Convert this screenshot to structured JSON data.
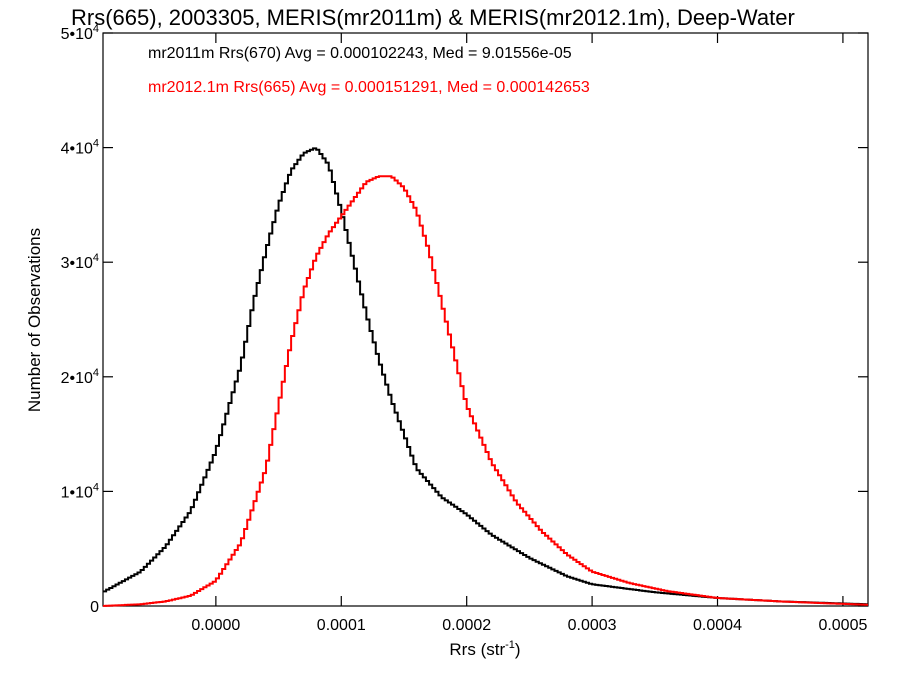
{
  "chart_data": {
    "type": "line",
    "title": "Rrs(665), 2003305, MERIS(mr2011m) & MERIS(mr2012.1m), Deep-Water",
    "xlabel": "Rrs (str",
    "xlabel_superscript": "-1",
    "xlabel_suffix": ")",
    "ylabel": "Number of Observations",
    "xlim": [
      -9e-05,
      0.00052
    ],
    "ylim": [
      0,
      50000
    ],
    "grid": false,
    "x_ticks": [
      {
        "value": 0.0,
        "label": "0.0000"
      },
      {
        "value": 0.0001,
        "label": "0.0001"
      },
      {
        "value": 0.0002,
        "label": "0.0002"
      },
      {
        "value": 0.0003,
        "label": "0.0003"
      },
      {
        "value": 0.0004,
        "label": "0.0004"
      },
      {
        "value": 0.0005,
        "label": "0.0005"
      }
    ],
    "y_ticks": [
      {
        "value": 0,
        "base": "0",
        "exp": ""
      },
      {
        "value": 10000,
        "base": "1•10",
        "exp": "4"
      },
      {
        "value": 20000,
        "base": "2•10",
        "exp": "4"
      },
      {
        "value": 30000,
        "base": "3•10",
        "exp": "4"
      },
      {
        "value": 40000,
        "base": "4•10",
        "exp": "4"
      },
      {
        "value": 50000,
        "base": "5•10",
        "exp": "4"
      }
    ],
    "series": [
      {
        "name": "mr2011m Rrs(670) Avg = 0.000102243, Med = 9.01556e-05",
        "color": "#000000",
        "x": [
          -9e-05,
          -6e-05,
          -4e-05,
          -2e-05,
          0.0,
          2e-05,
          3e-05,
          4e-05,
          5e-05,
          6e-05,
          7e-05,
          8e-05,
          9e-05,
          0.0001,
          0.00011,
          0.00012,
          0.00013,
          0.00014,
          0.00015,
          0.00016,
          0.00018,
          0.0002,
          0.00022,
          0.00025,
          0.00028,
          0.0003,
          0.00035,
          0.0004,
          0.00045,
          0.00052
        ],
        "y": [
          1200,
          3000,
          5200,
          8300,
          13500,
          21000,
          26500,
          31000,
          35000,
          38000,
          39500,
          40000,
          38500,
          34500,
          30000,
          25500,
          21500,
          18000,
          15000,
          12000,
          9500,
          8000,
          6200,
          4200,
          2600,
          1900,
          1200,
          700,
          400,
          150
        ]
      },
      {
        "name": "mr2012.1m Rrs(665) Avg = 0.000151291, Med = 0.000142653",
        "color": "#ff0000",
        "x": [
          -9e-05,
          -6e-05,
          -4e-05,
          -2e-05,
          0.0,
          2e-05,
          4e-05,
          5e-05,
          6e-05,
          7e-05,
          8e-05,
          9e-05,
          0.0001,
          0.00011,
          0.00012,
          0.00013,
          0.00014,
          0.00015,
          0.00016,
          0.00017,
          0.00018,
          0.00019,
          0.0002,
          0.00022,
          0.00024,
          0.00026,
          0.00028,
          0.0003,
          0.00033,
          0.00036,
          0.0004,
          0.00045,
          0.00052
        ],
        "y": [
          0,
          150,
          400,
          900,
          2200,
          5500,
          12000,
          17500,
          23000,
          27500,
          30500,
          32500,
          34000,
          35500,
          37000,
          37500,
          37500,
          36500,
          34500,
          31000,
          26500,
          22000,
          17500,
          12500,
          9000,
          6500,
          4500,
          3000,
          2000,
          1300,
          700,
          400,
          100
        ]
      }
    ]
  }
}
